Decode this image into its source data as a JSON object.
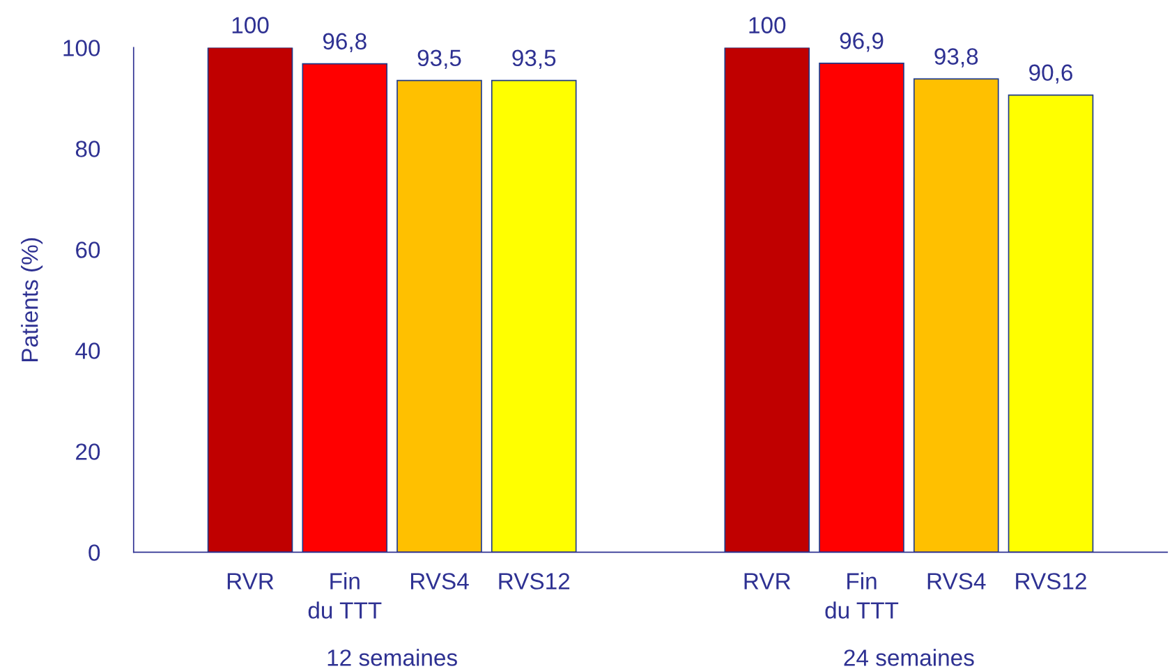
{
  "chart_data": {
    "type": "bar",
    "ylabel": "Patients (%)",
    "categories": [
      "12 semaines",
      "24 semaines"
    ],
    "series": [
      {
        "name": "RVR",
        "color": "#c00000",
        "values": [
          100,
          100
        ],
        "value_labels": [
          "100",
          "100"
        ]
      },
      {
        "name": "Fin\ndu TTT",
        "color": "#ff0000",
        "values": [
          96.8,
          96.9
        ],
        "value_labels": [
          "96,8",
          "96,9"
        ]
      },
      {
        "name": "RVS4",
        "color": "#ffc000",
        "values": [
          93.5,
          93.8
        ],
        "value_labels": [
          "93,5",
          "93,8"
        ]
      },
      {
        "name": "RVS12",
        "color": "#ffff00",
        "values": [
          93.5,
          90.6
        ],
        "value_labels": [
          "93,5",
          "90,6"
        ]
      }
    ],
    "ylim": [
      0,
      100
    ],
    "yticks": [
      0,
      20,
      40,
      60,
      80,
      100
    ],
    "grid": false,
    "legend": false
  }
}
